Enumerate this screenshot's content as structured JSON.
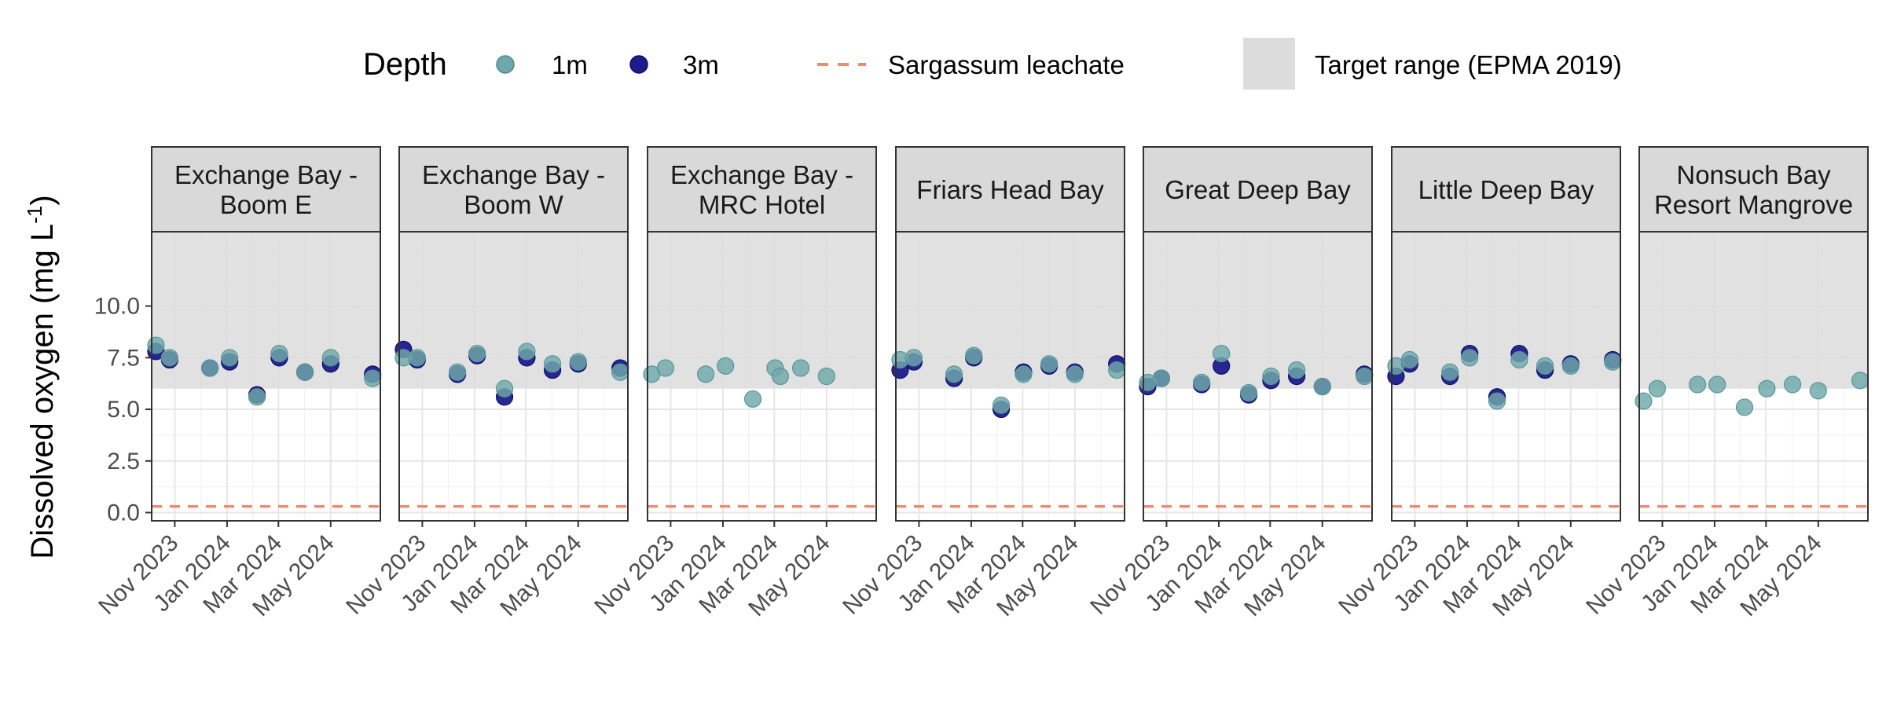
{
  "chart_data": {
    "type": "scatter",
    "ylabel_main": "Dissolved oxygen (mg L",
    "ylabel_sup": "-1",
    "ylabel_close": ")",
    "ylim": [
      -0.4,
      13.6
    ],
    "yticks": [
      0.0,
      2.5,
      5.0,
      7.5,
      10.0
    ],
    "ytick_labels": [
      "0.0",
      "2.5",
      "5.0",
      "7.5",
      "10.0"
    ],
    "xlim": [
      "2023-10-05",
      "2024-06-28"
    ],
    "xticks": [
      "2023-11-01",
      "2024-01-01",
      "2024-03-01",
      "2024-05-01"
    ],
    "xtick_labels": [
      "Nov 2023",
      "Jan 2024",
      "Mar 2024",
      "May 2024"
    ],
    "target_range": [
      6.0,
      10.0
    ],
    "leachate_level": 0.3,
    "grid": true,
    "legend": {
      "position": "top",
      "title": "Depth",
      "depth_labels": [
        "1m",
        "3m"
      ],
      "line_label": "Sargassum leachate",
      "band_label": "Target range (EPMA 2019)"
    },
    "colors": {
      "1m": "#6fa8ab",
      "3m": "#1c1c8c",
      "leachate": "#f08a74",
      "band": "#dcdcdc",
      "strip": "#d9d9d9"
    },
    "panels": [
      {
        "title": [
          "Exchange Bay -",
          "Boom E"
        ],
        "series": [
          {
            "name": "1m",
            "points": [
              [
                "2023-10-10",
                8.1
              ],
              [
                "2023-10-26",
                7.5
              ],
              [
                "2023-12-12",
                7.0
              ],
              [
                "2024-01-04",
                7.5
              ],
              [
                "2024-02-05",
                5.6
              ],
              [
                "2024-03-02",
                7.7
              ],
              [
                "2024-04-01",
                6.8
              ],
              [
                "2024-05-01",
                7.5
              ],
              [
                "2024-06-19",
                6.5
              ]
            ]
          },
          {
            "name": "3m",
            "points": [
              [
                "2023-10-10",
                7.8
              ],
              [
                "2023-10-26",
                7.4
              ],
              [
                "2023-12-12",
                7.0
              ],
              [
                "2024-01-04",
                7.3
              ],
              [
                "2024-02-05",
                5.7
              ],
              [
                "2024-03-02",
                7.5
              ],
              [
                "2024-04-01",
                6.8
              ],
              [
                "2024-05-01",
                7.2
              ],
              [
                "2024-06-19",
                6.7
              ]
            ]
          }
        ]
      },
      {
        "title": [
          "Exchange Bay -",
          "Boom W"
        ],
        "series": [
          {
            "name": "1m",
            "points": [
              [
                "2023-10-10",
                7.5
              ],
              [
                "2023-10-26",
                7.5
              ],
              [
                "2023-12-12",
                6.8
              ],
              [
                "2024-01-04",
                7.7
              ],
              [
                "2024-02-05",
                6.0
              ],
              [
                "2024-03-02",
                7.8
              ],
              [
                "2024-04-01",
                7.2
              ],
              [
                "2024-05-01",
                7.3
              ],
              [
                "2024-06-19",
                6.8
              ]
            ]
          },
          {
            "name": "3m",
            "points": [
              [
                "2023-10-10",
                7.9
              ],
              [
                "2023-10-26",
                7.4
              ],
              [
                "2023-12-12",
                6.7
              ],
              [
                "2024-01-04",
                7.6
              ],
              [
                "2024-02-05",
                5.6
              ],
              [
                "2024-03-02",
                7.5
              ],
              [
                "2024-04-01",
                6.9
              ],
              [
                "2024-05-01",
                7.2
              ],
              [
                "2024-06-19",
                7.0
              ]
            ]
          }
        ]
      },
      {
        "title": [
          "Exchange Bay -",
          "MRC Hotel"
        ],
        "series": [
          {
            "name": "1m",
            "points": [
              [
                "2023-10-10",
                6.7
              ],
              [
                "2023-10-26",
                7.0
              ],
              [
                "2023-12-12",
                6.7
              ],
              [
                "2024-01-04",
                7.1
              ],
              [
                "2024-02-05",
                5.5
              ],
              [
                "2024-03-02",
                7.0
              ],
              [
                "2024-03-08",
                6.6
              ],
              [
                "2024-04-01",
                7.0
              ],
              [
                "2024-05-01",
                6.6
              ]
            ]
          },
          {
            "name": "3m",
            "points": []
          }
        ]
      },
      {
        "title": [
          "Friars Head Bay"
        ],
        "series": [
          {
            "name": "1m",
            "points": [
              [
                "2023-10-10",
                7.4
              ],
              [
                "2023-10-26",
                7.5
              ],
              [
                "2023-12-12",
                6.7
              ],
              [
                "2024-01-04",
                7.6
              ],
              [
                "2024-02-05",
                5.2
              ],
              [
                "2024-03-02",
                6.7
              ],
              [
                "2024-04-01",
                7.2
              ],
              [
                "2024-05-01",
                6.7
              ],
              [
                "2024-06-19",
                6.9
              ]
            ]
          },
          {
            "name": "3m",
            "points": [
              [
                "2023-10-10",
                6.9
              ],
              [
                "2023-10-26",
                7.3
              ],
              [
                "2023-12-12",
                6.5
              ],
              [
                "2024-01-04",
                7.5
              ],
              [
                "2024-02-05",
                5.0
              ],
              [
                "2024-03-02",
                6.8
              ],
              [
                "2024-04-01",
                7.1
              ],
              [
                "2024-05-01",
                6.8
              ],
              [
                "2024-06-19",
                7.2
              ]
            ]
          }
        ]
      },
      {
        "title": [
          "Great Deep Bay"
        ],
        "series": [
          {
            "name": "1m",
            "points": [
              [
                "2023-10-10",
                6.3
              ],
              [
                "2023-10-26",
                6.5
              ],
              [
                "2023-12-12",
                6.3
              ],
              [
                "2024-01-04",
                7.7
              ],
              [
                "2024-02-05",
                5.8
              ],
              [
                "2024-03-02",
                6.6
              ],
              [
                "2024-04-01",
                6.9
              ],
              [
                "2024-05-01",
                6.1
              ],
              [
                "2024-06-19",
                6.6
              ]
            ]
          },
          {
            "name": "3m",
            "points": [
              [
                "2023-10-10",
                6.1
              ],
              [
                "2023-10-26",
                6.5
              ],
              [
                "2023-12-12",
                6.2
              ],
              [
                "2024-01-04",
                7.1
              ],
              [
                "2024-02-05",
                5.7
              ],
              [
                "2024-03-02",
                6.4
              ],
              [
                "2024-04-01",
                6.6
              ],
              [
                "2024-05-01",
                6.1
              ],
              [
                "2024-06-19",
                6.7
              ]
            ]
          }
        ]
      },
      {
        "title": [
          "Little Deep Bay"
        ],
        "series": [
          {
            "name": "1m",
            "points": [
              [
                "2023-10-10",
                7.1
              ],
              [
                "2023-10-26",
                7.4
              ],
              [
                "2023-12-12",
                6.8
              ],
              [
                "2024-01-04",
                7.5
              ],
              [
                "2024-02-05",
                5.4
              ],
              [
                "2024-03-02",
                7.4
              ],
              [
                "2024-04-01",
                7.1
              ],
              [
                "2024-05-01",
                7.1
              ],
              [
                "2024-06-19",
                7.3
              ]
            ]
          },
          {
            "name": "3m",
            "points": [
              [
                "2023-10-10",
                6.6
              ],
              [
                "2023-10-26",
                7.2
              ],
              [
                "2023-12-12",
                6.6
              ],
              [
                "2024-01-04",
                7.7
              ],
              [
                "2024-02-05",
                5.6
              ],
              [
                "2024-03-02",
                7.7
              ],
              [
                "2024-04-01",
                6.9
              ],
              [
                "2024-05-01",
                7.2
              ],
              [
                "2024-06-19",
                7.4
              ]
            ]
          }
        ]
      },
      {
        "title": [
          "Nonsuch Bay",
          "Resort Mangrove"
        ],
        "series": [
          {
            "name": "1m",
            "points": [
              [
                "2023-10-10",
                5.4
              ],
              [
                "2023-10-26",
                6.0
              ],
              [
                "2023-12-12",
                6.2
              ],
              [
                "2024-01-04",
                6.2
              ],
              [
                "2024-02-05",
                5.1
              ],
              [
                "2024-03-02",
                6.0
              ],
              [
                "2024-04-01",
                6.2
              ],
              [
                "2024-05-01",
                5.9
              ],
              [
                "2024-06-19",
                6.4
              ]
            ]
          },
          {
            "name": "3m",
            "points": []
          }
        ]
      }
    ]
  }
}
